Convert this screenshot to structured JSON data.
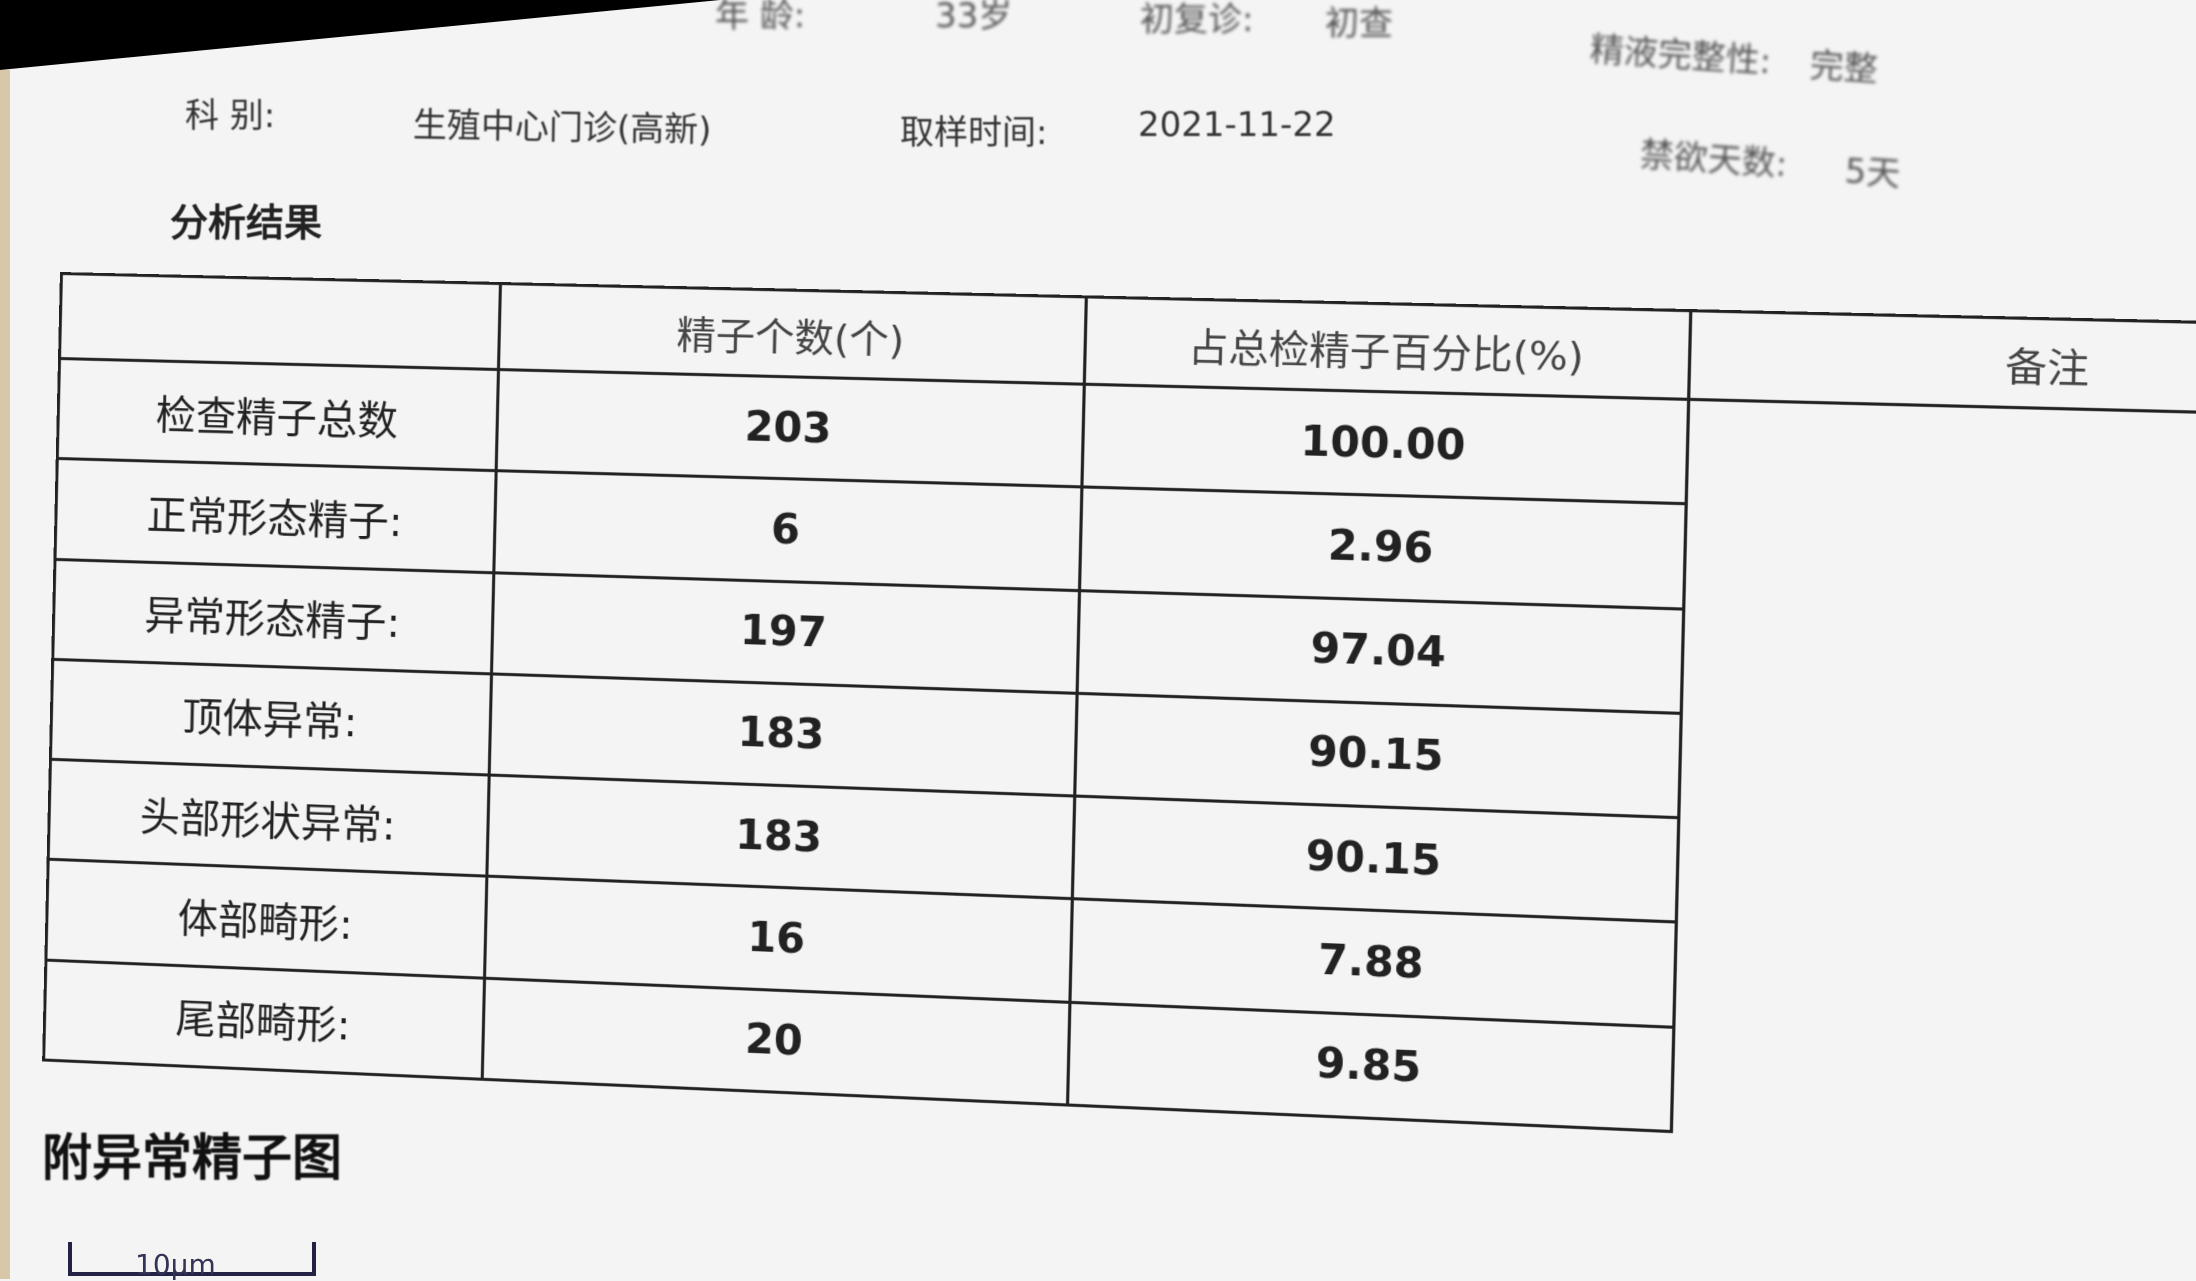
{
  "patient_info": {
    "age_label": "年    龄:",
    "age_value": "33岁",
    "visit_type_label": "初复诊:",
    "visit_type_value": "初查",
    "completeness_label": "精液完整性:",
    "completeness_value": "完整",
    "department_label": "科    别:",
    "department_value": "生殖中心门诊(高新)",
    "sample_time_label": "取样时间:",
    "sample_time_value": "2021-11-22",
    "abstinence_label": "禁欲天数:",
    "abstinence_value": "5天"
  },
  "section_title": "分析结果",
  "table": {
    "headers": [
      "",
      "精子个数(个)",
      "占总检精子百分比(%)",
      "备注"
    ],
    "rows": [
      {
        "label": "检查精子总数",
        "count": "203",
        "percent": "100.00"
      },
      {
        "label": "正常形态精子:",
        "count": "6",
        "percent": "2.96"
      },
      {
        "label": "异常形态精子:",
        "count": "197",
        "percent": "97.04"
      },
      {
        "label": "顶体异常:",
        "count": "183",
        "percent": "90.15"
      },
      {
        "label": "头部形状异常:",
        "count": "183",
        "percent": "90.15"
      },
      {
        "label": "体部畸形:",
        "count": "16",
        "percent": "7.88"
      },
      {
        "label": "尾部畸形:",
        "count": "20",
        "percent": "9.85"
      }
    ]
  },
  "figure_title": "附异常精子图",
  "scale_label": "10μm"
}
